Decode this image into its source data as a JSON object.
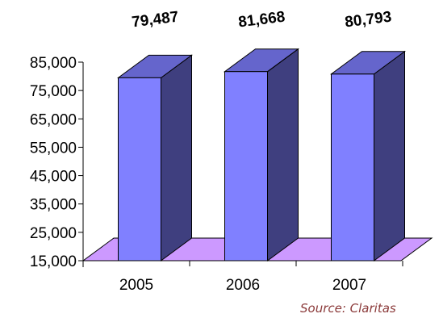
{
  "chart_data": {
    "type": "bar",
    "categories": [
      "2005",
      "2006",
      "2007"
    ],
    "values": [
      79487,
      81668,
      80793
    ],
    "data_labels": [
      "79,487",
      "81,668",
      "80,793"
    ],
    "ylim": [
      15000,
      85000
    ],
    "yticks": [
      15000,
      25000,
      35000,
      45000,
      55000,
      65000,
      75000,
      85000
    ],
    "ytick_labels": [
      "15,000",
      "25,000",
      "35,000",
      "45,000",
      "55,000",
      "65,000",
      "75,000",
      "85,000"
    ],
    "grid": false,
    "style": "3d-column",
    "colors": {
      "bar_front": "#8080FF",
      "bar_side": "#3F3F7F",
      "bar_top": "#6565CC",
      "floor": "#CC99FF"
    }
  },
  "source_note": "Source: Claritas"
}
